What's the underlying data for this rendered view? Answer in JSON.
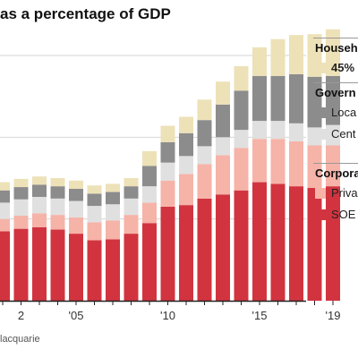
{
  "title": "as a percentage of GDP",
  "source": "lacquarie",
  "legend": {
    "groups": [
      {
        "title": "Househ",
        "items": [
          {
            "label": "45%",
            "bold": true,
            "series": "household"
          }
        ]
      },
      {
        "title": "Govern",
        "items": [
          {
            "label": "Loca",
            "series": "local"
          },
          {
            "label": "Cent",
            "series": "central"
          }
        ]
      },
      {
        "title": "Corpora",
        "items": [
          {
            "label": "Priva",
            "series": "private"
          },
          {
            "label": "SOE",
            "series": "soe"
          }
        ]
      }
    ]
  },
  "chart_data": {
    "type": "bar",
    "stacked": true,
    "categories": [
      "2001",
      "2002",
      "2003",
      "2004",
      "2005",
      "2006",
      "2007",
      "2008",
      "2009",
      "2010",
      "2011",
      "2012",
      "2013",
      "2014",
      "2015",
      "2016",
      "2017",
      "2018",
      "2019"
    ],
    "tick_labels": [
      {
        "category": "2002",
        "label": "2"
      },
      {
        "category": "2005",
        "label": "'05"
      },
      {
        "category": "2010",
        "label": "'10"
      },
      {
        "category": "2015",
        "label": "'15"
      },
      {
        "category": "2019",
        "label": "'19"
      }
    ],
    "ylim": [
      0,
      300
    ],
    "gridlines": [
      100,
      200,
      300
    ],
    "series": [
      {
        "key": "soe",
        "color": "#d1343f",
        "values": [
          85,
          88,
          90,
          87,
          82,
          74,
          75,
          82,
          95,
          115,
          117,
          125,
          130,
          135,
          145,
          143,
          140,
          138,
          140
        ]
      },
      {
        "key": "private",
        "color": "#f6b3a8",
        "values": [
          15,
          16,
          17,
          18,
          20,
          22,
          23,
          23,
          25,
          32,
          38,
          42,
          48,
          52,
          53,
          55,
          55,
          52,
          50
        ]
      },
      {
        "key": "central",
        "color": "#e0e0e0",
        "values": [
          20,
          20,
          20,
          20,
          20,
          20,
          20,
          20,
          20,
          22,
          22,
          22,
          22,
          22,
          22,
          22,
          22,
          22,
          25
        ]
      },
      {
        "key": "local",
        "color": "#8c8c8c",
        "values": [
          15,
          15,
          15,
          15,
          15,
          15,
          15,
          15,
          25,
          25,
          28,
          32,
          40,
          48,
          55,
          55,
          60,
          62,
          60
        ]
      },
      {
        "key": "household",
        "color": "#ede1b7",
        "values": [
          10,
          10,
          10,
          10,
          10,
          10,
          10,
          10,
          18,
          20,
          20,
          25,
          28,
          30,
          35,
          45,
          48,
          52,
          57
        ]
      }
    ]
  }
}
